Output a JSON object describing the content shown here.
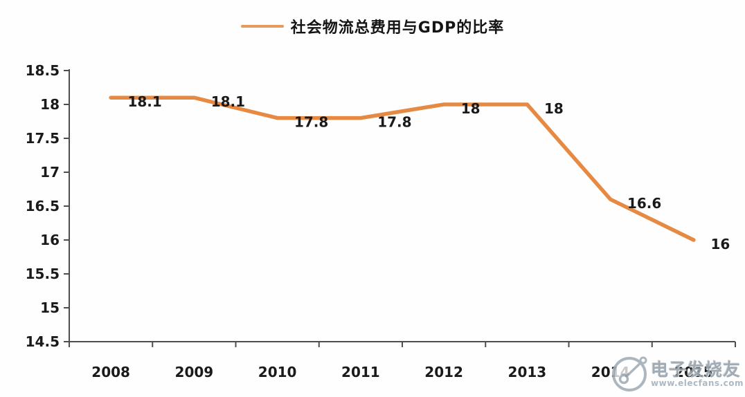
{
  "chart_data": {
    "type": "line",
    "title": "社会物流总费用与GDP的比率",
    "legend_position": "top-center",
    "categories": [
      "2008",
      "2009",
      "2010",
      "2011",
      "2012",
      "2013",
      "2014",
      "2015"
    ],
    "series": [
      {
        "name": "社会物流总费用与GDP的比率",
        "values": [
          18.1,
          18.1,
          17.8,
          17.8,
          18,
          18,
          16.6,
          16
        ]
      }
    ],
    "data_labels": [
      "18.1",
      "18.1",
      "17.8",
      "17.8",
      "18",
      "18",
      "16.6",
      "16"
    ],
    "xlabel": "",
    "ylabel": "",
    "ylim": [
      14.5,
      18.5
    ],
    "ytick_step": 0.5,
    "ytick_labels": [
      "18.5",
      "18",
      "17.5",
      "17",
      "16.5",
      "16",
      "15.5",
      "15",
      "14.5"
    ],
    "grid": false,
    "line_color": "#E68A43",
    "axis_color": "#4D4D4D",
    "text_color": "#1A1A1A"
  },
  "watermark": {
    "brand": "电子发烧友",
    "url": "www.elecfans.com"
  }
}
